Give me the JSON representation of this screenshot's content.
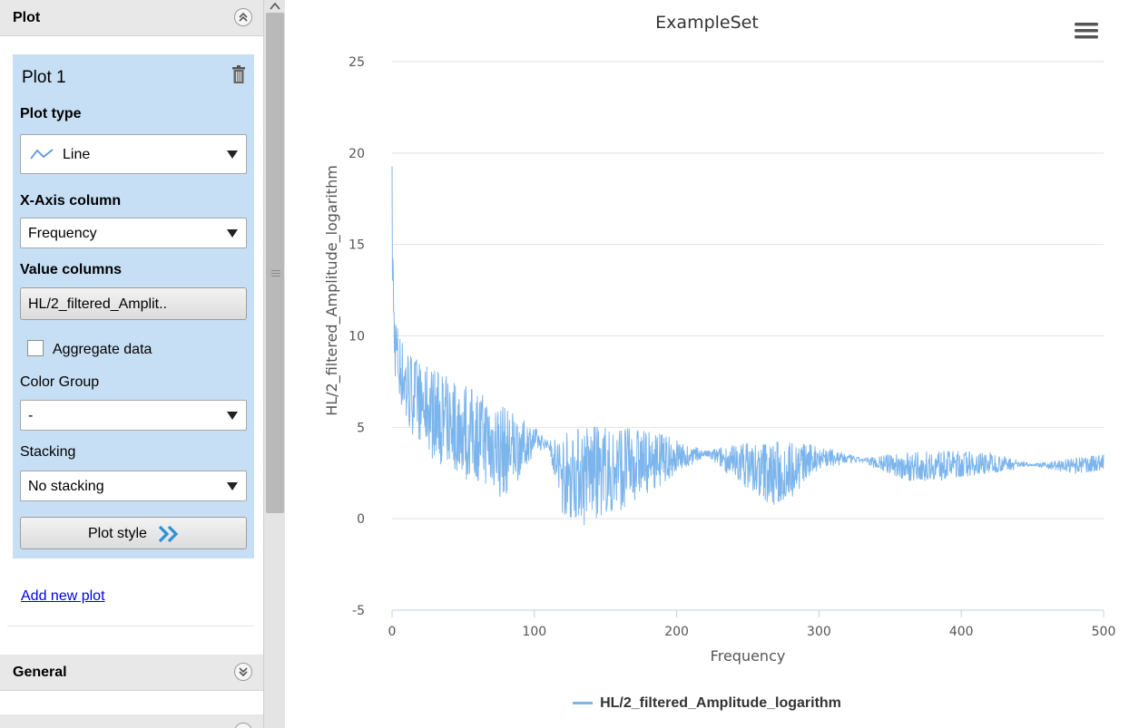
{
  "sidebar": {
    "plot_section": {
      "title": "Plot"
    },
    "plot_card": {
      "title": "Plot 1",
      "plot_type_label": "Plot type",
      "plot_type_value": "Line",
      "x_axis_label": "X-Axis column",
      "x_axis_value": "Frequency",
      "value_columns_label": "Value columns",
      "value_columns_value": "HL/2_filtered_Amplit..",
      "aggregate_label": "Aggregate data",
      "aggregate_checked": false,
      "color_group_label": "Color Group",
      "color_group_value": "-",
      "stacking_label": "Stacking",
      "stacking_value": "No stacking",
      "plot_style_label": "Plot style"
    },
    "add_plot_link": "Add new plot",
    "general_section": {
      "title": "General"
    }
  },
  "chart_data": {
    "type": "line",
    "title": "ExampleSet",
    "xlabel": "Frequency",
    "ylabel": "HL/2_filtered_Amplitude_logarithm",
    "xlim": [
      0,
      500
    ],
    "ylim": [
      -5,
      25
    ],
    "x_ticks": [
      "0",
      "100",
      "200",
      "300",
      "400",
      "500"
    ],
    "y_ticks": [
      "-5",
      "0",
      "5",
      "10",
      "15",
      "20",
      "25"
    ],
    "grid": true,
    "legend_placement": "bottom-center",
    "series": [
      {
        "name": "HL/2_filtered_Amplitude_logarithm",
        "color": "#7cb5ec",
        "envelope": {
          "x": [
            0,
            0.5,
            1,
            2,
            4,
            8,
            15,
            25,
            40,
            60,
            80,
            100,
            110,
            120,
            135,
            160,
            190,
            220,
            245,
            270,
            300,
            330,
            360,
            390,
            420,
            450,
            480,
            500
          ],
          "upper": [
            19.5,
            17.5,
            13.5,
            11.5,
            10.5,
            9.5,
            8.8,
            8.3,
            7.7,
            6.9,
            6.0,
            5.0,
            4.2,
            4.6,
            5.0,
            5.0,
            4.6,
            3.7,
            4.1,
            4.2,
            4.0,
            3.3,
            3.6,
            3.7,
            3.6,
            3.0,
            3.3,
            3.5
          ],
          "lower": [
            12,
            10.5,
            8.5,
            7.5,
            6.5,
            5.5,
            4.3,
            3.5,
            2.5,
            1.8,
            1.0,
            3.5,
            3.9,
            -0.1,
            -0.4,
            0.2,
            1.8,
            3.4,
            1.8,
            0.3,
            2.7,
            3.1,
            2.0,
            2.1,
            2.4,
            2.9,
            2.4,
            2.6
          ]
        }
      }
    ]
  }
}
